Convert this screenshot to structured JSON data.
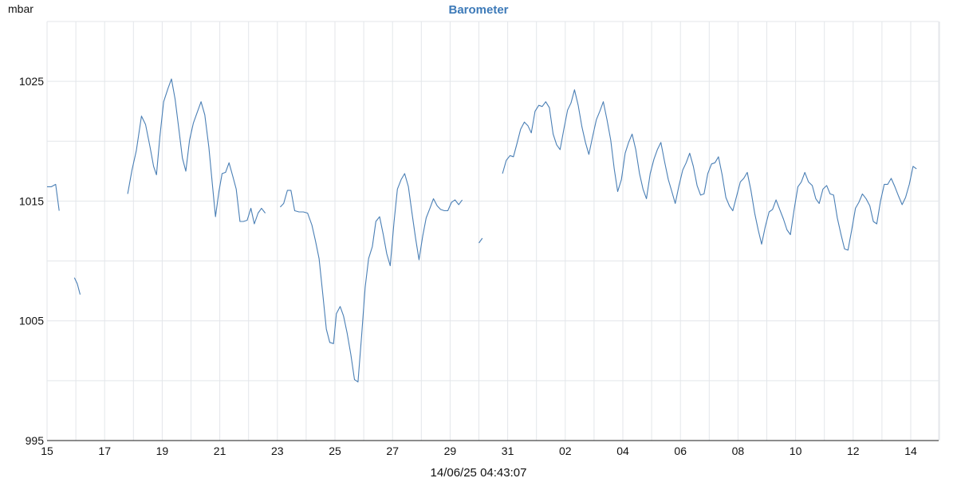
{
  "chart_data": {
    "type": "line",
    "title": "Barometer",
    "ylabel": "mbar",
    "xlabel": "",
    "footer": "14/06/25 04:43:07",
    "ylim": [
      995,
      1030
    ],
    "yticks": [
      995,
      1005,
      1015,
      1025
    ],
    "ygrid": [
      995,
      1000,
      1005,
      1010,
      1015,
      1020,
      1025,
      1030
    ],
    "xlim": [
      0,
      31.5
    ],
    "xticks": [
      {
        "x": 0,
        "label": "15"
      },
      {
        "x": 2,
        "label": "17"
      },
      {
        "x": 4,
        "label": "19"
      },
      {
        "x": 6,
        "label": "21"
      },
      {
        "x": 8,
        "label": "23"
      },
      {
        "x": 10,
        "label": "25"
      },
      {
        "x": 12,
        "label": "27"
      },
      {
        "x": 14,
        "label": "29"
      },
      {
        "x": 16,
        "label": "31"
      },
      {
        "x": 18,
        "label": "02"
      },
      {
        "x": 20,
        "label": "04"
      },
      {
        "x": 22,
        "label": "06"
      },
      {
        "x": 24,
        "label": "08"
      },
      {
        "x": 26,
        "label": "10"
      },
      {
        "x": 28,
        "label": "12"
      },
      {
        "x": 30,
        "label": "14"
      }
    ],
    "grid": true,
    "colors": {
      "line": "#4a7fb5",
      "title": "#3d7ab8"
    },
    "series": [
      {
        "segments": [
          [
            [
              0,
              1016.2
            ],
            [
              0.15,
              1016.2
            ],
            [
              0.3,
              1016.4
            ],
            [
              0.42,
              1014.2
            ]
          ],
          [
            [
              0.95,
              1008.6
            ],
            [
              1.05,
              1008.1
            ],
            [
              1.15,
              1007.2
            ]
          ],
          [
            [
              2.8,
              1015.6
            ],
            [
              2.95,
              1017.6
            ],
            [
              3.1,
              1019.2
            ],
            [
              3.28,
              1022.1
            ],
            [
              3.42,
              1021.4
            ],
            [
              3.58,
              1019.5
            ],
            [
              3.7,
              1017.9
            ],
            [
              3.8,
              1017.2
            ],
            [
              3.92,
              1020.4
            ],
            [
              4.05,
              1023.3
            ],
            [
              4.2,
              1024.4
            ],
            [
              4.32,
              1025.2
            ],
            [
              4.45,
              1023.5
            ],
            [
              4.58,
              1021.0
            ],
            [
              4.7,
              1018.6
            ],
            [
              4.82,
              1017.5
            ],
            [
              4.95,
              1020.1
            ],
            [
              5.08,
              1021.5
            ],
            [
              5.2,
              1022.3
            ],
            [
              5.35,
              1023.3
            ],
            [
              5.48,
              1022.2
            ],
            [
              5.62,
              1019.5
            ],
            [
              5.75,
              1016.2
            ],
            [
              5.85,
              1013.7
            ],
            [
              5.97,
              1015.8
            ],
            [
              6.08,
              1017.3
            ],
            [
              6.2,
              1017.4
            ],
            [
              6.32,
              1018.2
            ],
            [
              6.45,
              1017.1
            ],
            [
              6.57,
              1016.0
            ],
            [
              6.7,
              1013.3
            ],
            [
              6.82,
              1013.3
            ],
            [
              6.95,
              1013.4
            ],
            [
              7.08,
              1014.4
            ],
            [
              7.2,
              1013.1
            ],
            [
              7.33,
              1014.0
            ],
            [
              7.45,
              1014.4
            ],
            [
              7.58,
              1014.0
            ]
          ],
          [
            [
              8.1,
              1014.5
            ],
            [
              8.22,
              1014.8
            ],
            [
              8.35,
              1015.9
            ],
            [
              8.47,
              1015.9
            ],
            [
              8.6,
              1014.2
            ],
            [
              8.75,
              1014.1
            ],
            [
              8.9,
              1014.1
            ],
            [
              9.05,
              1014.0
            ],
            [
              9.2,
              1013.0
            ],
            [
              9.32,
              1011.7
            ],
            [
              9.45,
              1010.2
            ],
            [
              9.58,
              1007.2
            ],
            [
              9.7,
              1004.3
            ],
            [
              9.82,
              1003.2
            ],
            [
              9.95,
              1003.1
            ],
            [
              10.05,
              1005.6
            ],
            [
              10.18,
              1006.2
            ],
            [
              10.3,
              1005.4
            ],
            [
              10.42,
              1004.0
            ],
            [
              10.55,
              1002.2
            ],
            [
              10.68,
              1000.1
            ],
            [
              10.8,
              999.9
            ],
            [
              10.93,
              1003.9
            ],
            [
              11.05,
              1007.8
            ],
            [
              11.17,
              1010.2
            ],
            [
              11.3,
              1011.2
            ],
            [
              11.42,
              1013.3
            ],
            [
              11.55,
              1013.7
            ],
            [
              11.68,
              1012.2
            ],
            [
              11.8,
              1010.6
            ],
            [
              11.92,
              1009.6
            ],
            [
              12.05,
              1013.2
            ],
            [
              12.17,
              1016.0
            ],
            [
              12.3,
              1016.8
            ],
            [
              12.42,
              1017.3
            ],
            [
              12.55,
              1016.2
            ],
            [
              12.67,
              1014.1
            ],
            [
              12.8,
              1011.9
            ],
            [
              12.92,
              1010.1
            ],
            [
              13.05,
              1012.1
            ],
            [
              13.17,
              1013.6
            ],
            [
              13.3,
              1014.4
            ],
            [
              13.42,
              1015.2
            ],
            [
              13.55,
              1014.6
            ],
            [
              13.67,
              1014.3
            ],
            [
              13.8,
              1014.2
            ],
            [
              13.92,
              1014.2
            ],
            [
              14.05,
              1014.9
            ],
            [
              14.17,
              1015.1
            ],
            [
              14.3,
              1014.7
            ],
            [
              14.42,
              1015.1
            ]
          ],
          [
            [
              15.0,
              1011.5
            ],
            [
              15.12,
              1011.9
            ]
          ],
          [
            [
              15.82,
              1017.3
            ],
            [
              15.95,
              1018.4
            ],
            [
              16.08,
              1018.8
            ],
            [
              16.2,
              1018.7
            ],
            [
              16.32,
              1019.8
            ],
            [
              16.45,
              1021.0
            ],
            [
              16.58,
              1021.6
            ],
            [
              16.7,
              1021.3
            ],
            [
              16.82,
              1020.7
            ],
            [
              16.95,
              1022.5
            ],
            [
              17.08,
              1023.0
            ],
            [
              17.2,
              1022.9
            ],
            [
              17.32,
              1023.3
            ],
            [
              17.45,
              1022.8
            ],
            [
              17.58,
              1020.6
            ],
            [
              17.7,
              1019.7
            ],
            [
              17.82,
              1019.3
            ],
            [
              17.95,
              1021.0
            ],
            [
              18.08,
              1022.6
            ],
            [
              18.2,
              1023.2
            ],
            [
              18.32,
              1024.3
            ],
            [
              18.45,
              1023.0
            ],
            [
              18.58,
              1021.2
            ],
            [
              18.7,
              1019.9
            ],
            [
              18.82,
              1018.9
            ],
            [
              18.95,
              1020.4
            ],
            [
              19.08,
              1021.8
            ],
            [
              19.2,
              1022.5
            ],
            [
              19.32,
              1023.3
            ],
            [
              19.45,
              1021.8
            ],
            [
              19.58,
              1020.1
            ],
            [
              19.7,
              1017.7
            ],
            [
              19.82,
              1015.8
            ],
            [
              19.95,
              1016.8
            ],
            [
              20.08,
              1019.0
            ],
            [
              20.2,
              1019.9
            ],
            [
              20.32,
              1020.6
            ],
            [
              20.45,
              1019.3
            ],
            [
              20.58,
              1017.3
            ],
            [
              20.7,
              1016.0
            ],
            [
              20.82,
              1015.2
            ],
            [
              20.95,
              1017.3
            ],
            [
              21.08,
              1018.5
            ],
            [
              21.2,
              1019.3
            ],
            [
              21.32,
              1019.9
            ],
            [
              21.45,
              1018.3
            ],
            [
              21.58,
              1016.8
            ],
            [
              21.7,
              1015.8
            ],
            [
              21.82,
              1014.8
            ],
            [
              21.95,
              1016.3
            ],
            [
              22.08,
              1017.6
            ],
            [
              22.2,
              1018.2
            ],
            [
              22.32,
              1019.0
            ],
            [
              22.45,
              1017.9
            ],
            [
              22.58,
              1016.3
            ],
            [
              22.7,
              1015.5
            ],
            [
              22.82,
              1015.6
            ],
            [
              22.95,
              1017.3
            ],
            [
              23.08,
              1018.1
            ],
            [
              23.2,
              1018.2
            ],
            [
              23.32,
              1018.7
            ],
            [
              23.45,
              1017.2
            ],
            [
              23.58,
              1015.3
            ],
            [
              23.7,
              1014.6
            ],
            [
              23.82,
              1014.2
            ],
            [
              23.95,
              1015.4
            ],
            [
              24.08,
              1016.6
            ],
            [
              24.2,
              1016.9
            ],
            [
              24.32,
              1017.4
            ],
            [
              24.45,
              1015.9
            ],
            [
              24.58,
              1014.0
            ],
            [
              24.7,
              1012.6
            ],
            [
              24.82,
              1011.4
            ],
            [
              24.95,
              1012.9
            ],
            [
              25.08,
              1014.1
            ],
            [
              25.2,
              1014.3
            ],
            [
              25.32,
              1015.1
            ],
            [
              25.45,
              1014.3
            ],
            [
              25.58,
              1013.5
            ],
            [
              25.7,
              1012.6
            ],
            [
              25.82,
              1012.2
            ],
            [
              25.95,
              1014.3
            ],
            [
              26.08,
              1016.2
            ],
            [
              26.2,
              1016.6
            ],
            [
              26.32,
              1017.4
            ],
            [
              26.45,
              1016.6
            ],
            [
              26.58,
              1016.3
            ],
            [
              26.7,
              1015.2
            ],
            [
              26.82,
              1014.8
            ],
            [
              26.95,
              1016.0
            ],
            [
              27.08,
              1016.3
            ],
            [
              27.2,
              1015.6
            ],
            [
              27.32,
              1015.5
            ],
            [
              27.45,
              1013.6
            ],
            [
              27.58,
              1012.2
            ],
            [
              27.7,
              1011.0
            ],
            [
              27.82,
              1010.9
            ],
            [
              27.95,
              1012.6
            ],
            [
              28.08,
              1014.4
            ],
            [
              28.2,
              1014.9
            ],
            [
              28.32,
              1015.6
            ],
            [
              28.45,
              1015.2
            ],
            [
              28.58,
              1014.6
            ],
            [
              28.7,
              1013.3
            ],
            [
              28.82,
              1013.1
            ],
            [
              28.95,
              1015.0
            ],
            [
              29.08,
              1016.4
            ],
            [
              29.2,
              1016.4
            ],
            [
              29.32,
              1016.9
            ],
            [
              29.45,
              1016.2
            ],
            [
              29.58,
              1015.4
            ],
            [
              29.7,
              1014.7
            ],
            [
              29.82,
              1015.3
            ],
            [
              29.95,
              1016.4
            ],
            [
              30.08,
              1017.9
            ],
            [
              30.2,
              1017.7
            ]
          ]
        ]
      }
    ]
  }
}
